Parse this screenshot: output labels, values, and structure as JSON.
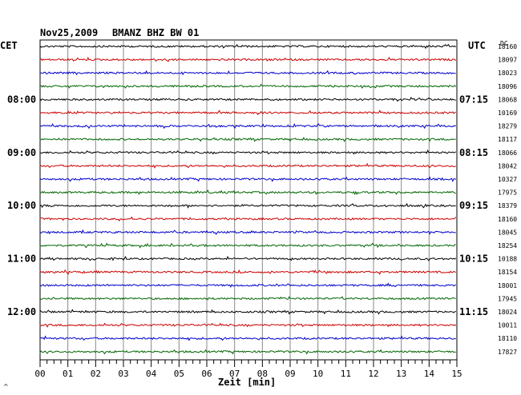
{
  "header": {
    "date": "Nov25,2009",
    "station": "BMANZ BHZ BW 01",
    "left_zone": "CET",
    "right_zone": "UTC",
    "dc_label": "DC"
  },
  "chart_data": {
    "type": "line",
    "title": "Nov25,2009   BMANZ BHZ BW 01",
    "xlabel": "Zeit [min]",
    "xlim": [
      0,
      15
    ],
    "x_ticks": [
      "00",
      "01",
      "02",
      "03",
      "04",
      "05",
      "06",
      "07",
      "08",
      "09",
      "10",
      "11",
      "12",
      "13",
      "14",
      "15"
    ],
    "rows": 24,
    "trace_colors": [
      "#000000",
      "#cc0000",
      "#0000cc",
      "#006600"
    ],
    "left_hour_labels": [
      {
        "row": 4,
        "text": "08:00"
      },
      {
        "row": 8,
        "text": "09:00"
      },
      {
        "row": 12,
        "text": "10:00"
      },
      {
        "row": 16,
        "text": "11:00"
      },
      {
        "row": 20,
        "text": "12:00"
      }
    ],
    "right_hour_labels": [
      {
        "row": 4,
        "text": "07:15"
      },
      {
        "row": 8,
        "text": "08:15"
      },
      {
        "row": 12,
        "text": "09:15"
      },
      {
        "row": 16,
        "text": "10:15"
      },
      {
        "row": 20,
        "text": "11:15"
      }
    ],
    "dc_values": [
      "18160",
      "18097",
      "18023",
      "18096",
      "18068",
      "10169",
      "18279",
      "18117",
      "18066",
      "18042",
      "10327",
      "17975",
      "18379",
      "18160",
      "18045",
      "18254",
      "10188",
      "18154",
      "18001",
      "17945",
      "18024",
      "10011",
      "18110",
      "17827"
    ]
  }
}
